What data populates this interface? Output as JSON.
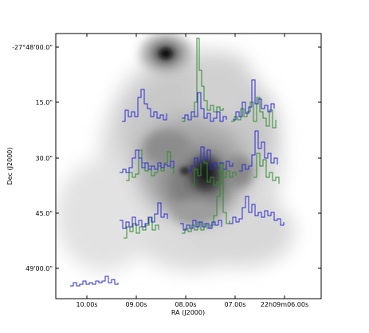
{
  "figure": {
    "xlabel": "RA (J2000)",
    "ylabel": "Dec (J2000)",
    "x_ticks": [
      "10.00s",
      "09.00s",
      "08.00s",
      "07.00s",
      "22h09m06.00s"
    ],
    "y_ticks": [
      "-27°48'00.0\"",
      "15.0\"",
      "30.0\"",
      "45.0\"",
      "49'00.0\""
    ],
    "colors": {
      "spectrum_a": "#2a2ad6",
      "spectrum_b": "#2e8b2e",
      "frame": "#000000"
    },
    "image_description_note": ""
  }
}
